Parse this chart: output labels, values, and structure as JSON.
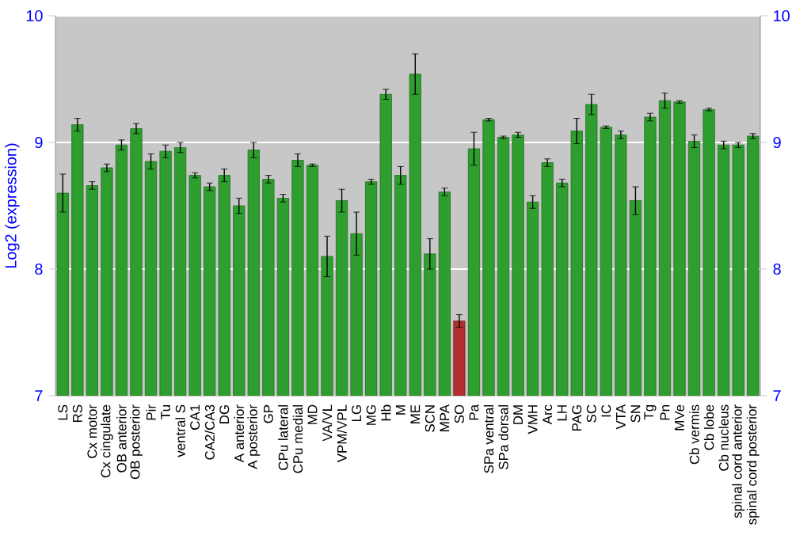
{
  "chart_data": {
    "type": "bar",
    "ylabel": "Log2 (expression)",
    "categories": [
      "LS",
      "RS",
      "Cx motor",
      "Cx cingulate",
      "OB anterior",
      "OB posterior",
      "Pir",
      "Tu",
      "ventral S",
      "CA1",
      "CA2/CA3",
      "DG",
      "A anterior",
      "A posterior",
      "GP",
      "CPu lateral",
      "CPu medial",
      "MD",
      "VA/VL",
      "VPM/VPL",
      "LG",
      "MG",
      "Hb",
      "M",
      "ME",
      "SCN",
      "MPA",
      "SO",
      "Pa",
      "SPa ventral",
      "SPa dorsal",
      "DM",
      "VMH",
      "Arc",
      "LH",
      "PAG",
      "SC",
      "IC",
      "VTA",
      "SN",
      "Tg",
      "Pn",
      "MVe",
      "Cb vermis",
      "Cb lobe",
      "Cb nucleus",
      "spinal cord anterior",
      "spinal cord posterior"
    ],
    "values": [
      8.6,
      9.14,
      8.66,
      8.8,
      8.98,
      9.11,
      8.85,
      8.93,
      8.96,
      8.74,
      8.65,
      8.74,
      8.5,
      8.94,
      8.71,
      8.56,
      8.86,
      8.82,
      8.1,
      8.54,
      8.28,
      8.69,
      9.38,
      8.74,
      9.54,
      8.12,
      8.61,
      7.59,
      8.95,
      9.18,
      9.04,
      9.06,
      8.53,
      8.84,
      8.68,
      9.09,
      9.3,
      9.12,
      9.06,
      8.54,
      9.2,
      9.33,
      9.32,
      9.01,
      9.26,
      8.98,
      8.98,
      9.05
    ],
    "errors": [
      0.15,
      0.05,
      0.03,
      0.03,
      0.04,
      0.04,
      0.06,
      0.05,
      0.04,
      0.02,
      0.03,
      0.05,
      0.06,
      0.06,
      0.03,
      0.03,
      0.05,
      0.01,
      0.16,
      0.09,
      0.17,
      0.02,
      0.04,
      0.07,
      0.16,
      0.12,
      0.03,
      0.05,
      0.13,
      0.01,
      0.01,
      0.02,
      0.05,
      0.03,
      0.03,
      0.1,
      0.08,
      0.01,
      0.03,
      0.11,
      0.03,
      0.06,
      0.01,
      0.05,
      0.01,
      0.03,
      0.02,
      0.02
    ],
    "colors": [
      "#2e9e2e",
      "#2e9e2e",
      "#2e9e2e",
      "#2e9e2e",
      "#2e9e2e",
      "#2e9e2e",
      "#2e9e2e",
      "#2e9e2e",
      "#2e9e2e",
      "#2e9e2e",
      "#2e9e2e",
      "#2e9e2e",
      "#2e9e2e",
      "#2e9e2e",
      "#2e9e2e",
      "#2e9e2e",
      "#2e9e2e",
      "#2e9e2e",
      "#2e9e2e",
      "#2e9e2e",
      "#2e9e2e",
      "#2e9e2e",
      "#2e9e2e",
      "#2e9e2e",
      "#2e9e2e",
      "#2e9e2e",
      "#2e9e2e",
      "#b03030",
      "#2e9e2e",
      "#2e9e2e",
      "#2e9e2e",
      "#2e9e2e",
      "#2e9e2e",
      "#2e9e2e",
      "#2e9e2e",
      "#2e9e2e",
      "#2e9e2e",
      "#2e9e2e",
      "#2e9e2e",
      "#2e9e2e",
      "#2e9e2e",
      "#2e9e2e",
      "#2e9e2e",
      "#2e9e2e",
      "#2e9e2e",
      "#2e9e2e",
      "#2e9e2e",
      "#2e9e2e"
    ],
    "ylim": [
      7,
      10
    ],
    "yticks": [
      7,
      8,
      9,
      10
    ],
    "y2lim": [
      7,
      10
    ],
    "y2ticks": [
      7,
      8,
      9,
      10
    ],
    "grid": "y"
  }
}
